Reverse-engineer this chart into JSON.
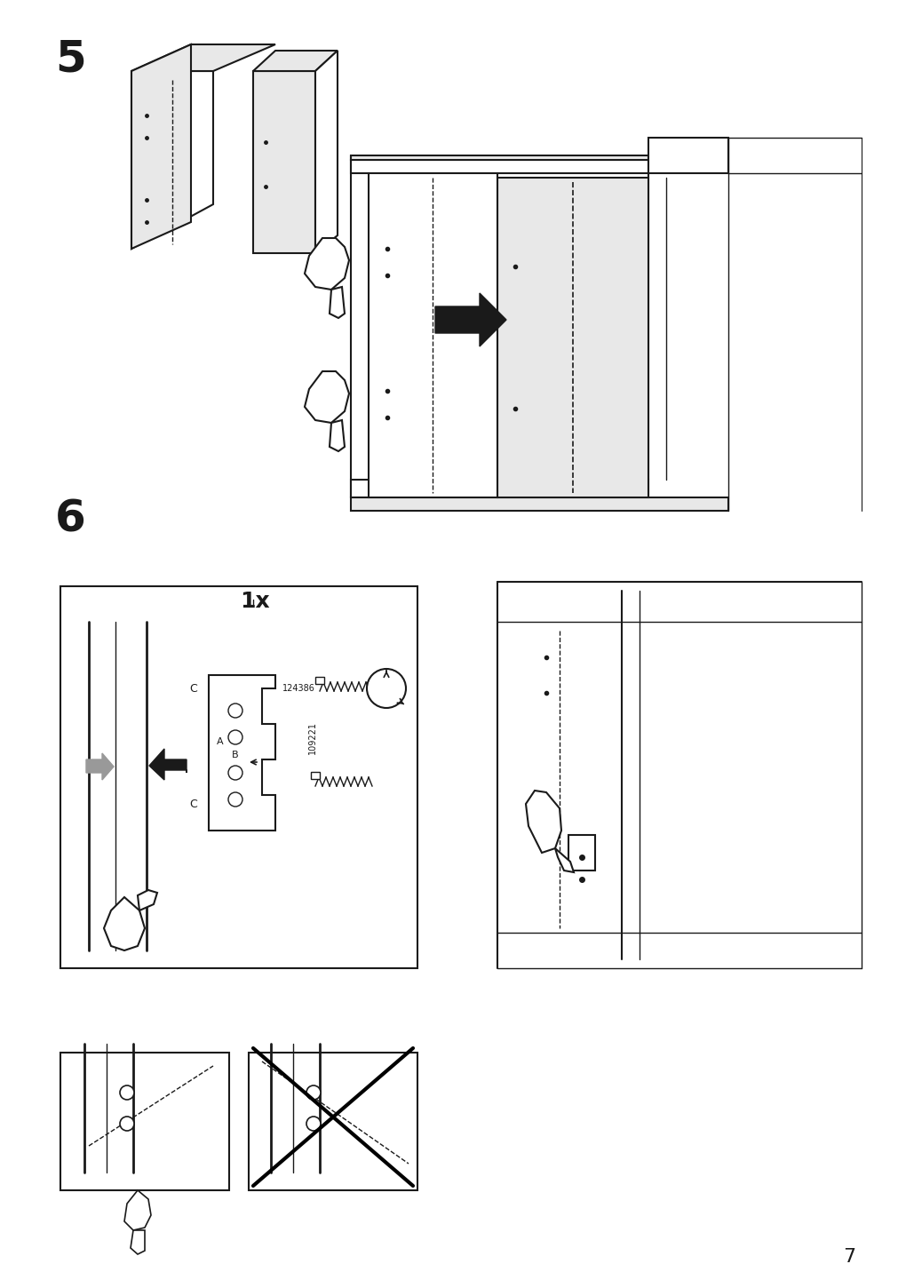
{
  "page_number": "7",
  "step5_label": "5",
  "step6_label": "6",
  "quantity_label": "1x",
  "bg_color": "#ffffff",
  "line_color": "#1a1a1a",
  "gray_fill": "#d0d0d0",
  "light_gray": "#e8e8e8",
  "arrow_color": "#111111",
  "gray_arrow": "#aaaaaa",
  "font_size_step": 36,
  "font_size_qty": 18,
  "font_size_page": 16,
  "part_number_1": "124386",
  "part_number_2": "109221"
}
